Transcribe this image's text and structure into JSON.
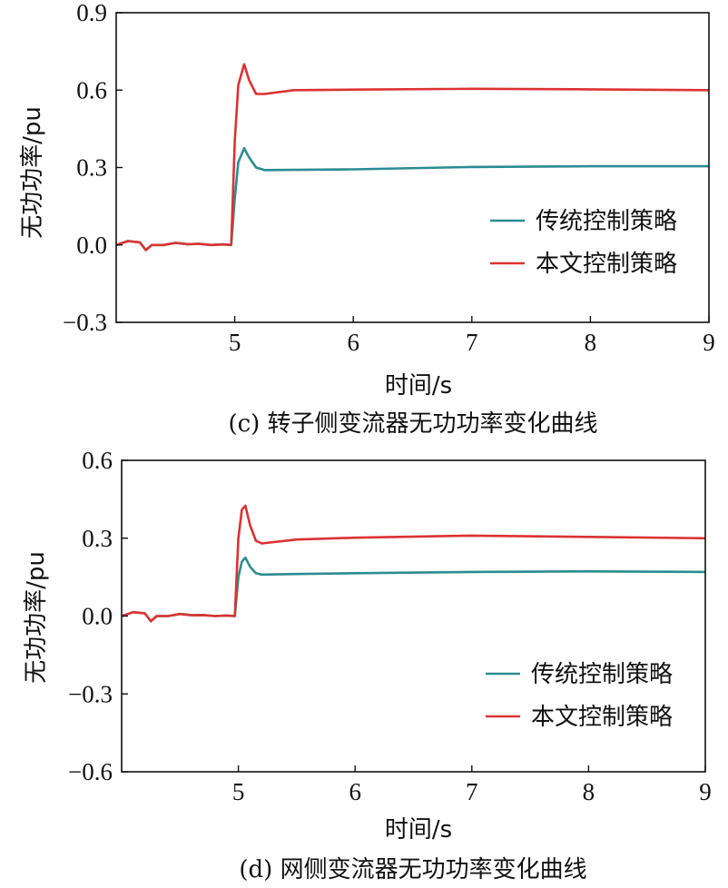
{
  "colors": {
    "traditional": "#2a8c93",
    "proposed": "#dc3232",
    "axis": "#111111"
  },
  "chart_data": [
    {
      "type": "line",
      "caption": "(c) 转子侧变流器无功功率变化曲线",
      "xlabel": "时间/s",
      "ylabel": "无功功率/pu",
      "xlim": [
        4,
        9
      ],
      "ylim": [
        -0.3,
        0.9
      ],
      "xticks": [
        5,
        6,
        7,
        8,
        9
      ],
      "yticks": [
        -0.3,
        0.0,
        0.3,
        0.6,
        0.9
      ],
      "ytick_labels": [
        "−0.3",
        "0.0",
        "0.3",
        "0.6",
        "0.9"
      ],
      "legend": "right",
      "series": [
        {
          "name": "传统控制策略",
          "color": "#2a8c93",
          "x": [
            4.0,
            4.1,
            4.2,
            4.25,
            4.3,
            4.4,
            4.5,
            4.6,
            4.7,
            4.8,
            4.9,
            4.97,
            5.0,
            5.03,
            5.08,
            5.12,
            5.18,
            5.25,
            5.5,
            6.0,
            7.0,
            8.0,
            9.0
          ],
          "y": [
            0.0,
            0.015,
            0.01,
            -0.02,
            0.0,
            0.0,
            0.008,
            0.003,
            0.004,
            0.0,
            0.002,
            0.0,
            0.18,
            0.32,
            0.375,
            0.34,
            0.3,
            0.29,
            0.291,
            0.293,
            0.302,
            0.305,
            0.305
          ]
        },
        {
          "name": "本文控制策略",
          "color": "#dc3232",
          "x": [
            4.0,
            4.1,
            4.2,
            4.25,
            4.3,
            4.4,
            4.5,
            4.6,
            4.7,
            4.8,
            4.9,
            4.97,
            5.0,
            5.03,
            5.08,
            5.12,
            5.18,
            5.25,
            5.5,
            6.0,
            7.0,
            8.0,
            9.0
          ],
          "y": [
            0.0,
            0.015,
            0.01,
            -0.02,
            0.0,
            0.0,
            0.008,
            0.003,
            0.004,
            0.0,
            0.002,
            0.0,
            0.4,
            0.62,
            0.7,
            0.64,
            0.585,
            0.585,
            0.6,
            0.602,
            0.605,
            0.603,
            0.6
          ]
        }
      ]
    },
    {
      "type": "line",
      "caption": "(d) 网侧变流器无功功率变化曲线",
      "xlabel": "时间/s",
      "ylabel": "无功功率/pu",
      "xlim": [
        4,
        9
      ],
      "ylim": [
        -0.6,
        0.6
      ],
      "xticks": [
        5,
        6,
        7,
        8,
        9
      ],
      "yticks": [
        -0.6,
        -0.3,
        0.0,
        0.3,
        0.6
      ],
      "ytick_labels": [
        "−0.6",
        "−0.3",
        "0.0",
        "0.3",
        "0.6"
      ],
      "legend": "lower right",
      "series": [
        {
          "name": "传统控制策略",
          "color": "#2a8c93",
          "x": [
            4.0,
            4.1,
            4.2,
            4.25,
            4.3,
            4.4,
            4.5,
            4.6,
            4.7,
            4.8,
            4.9,
            4.97,
            5.0,
            5.03,
            5.06,
            5.1,
            5.15,
            5.2,
            5.5,
            6.0,
            7.0,
            8.0,
            9.0
          ],
          "y": [
            0.0,
            0.015,
            0.01,
            -0.02,
            0.0,
            0.0,
            0.008,
            0.003,
            0.004,
            0.0,
            0.002,
            0.0,
            0.15,
            0.21,
            0.225,
            0.19,
            0.165,
            0.16,
            0.162,
            0.165,
            0.17,
            0.172,
            0.17
          ]
        },
        {
          "name": "本文控制策略",
          "color": "#dc3232",
          "x": [
            4.0,
            4.1,
            4.2,
            4.25,
            4.3,
            4.4,
            4.5,
            4.6,
            4.7,
            4.8,
            4.9,
            4.97,
            5.0,
            5.03,
            5.06,
            5.1,
            5.15,
            5.2,
            5.5,
            6.0,
            7.0,
            8.0,
            9.0
          ],
          "y": [
            0.0,
            0.015,
            0.01,
            -0.02,
            0.0,
            0.0,
            0.008,
            0.003,
            0.004,
            0.0,
            0.002,
            0.0,
            0.3,
            0.41,
            0.425,
            0.35,
            0.29,
            0.28,
            0.295,
            0.302,
            0.31,
            0.305,
            0.3
          ]
        }
      ]
    }
  ]
}
